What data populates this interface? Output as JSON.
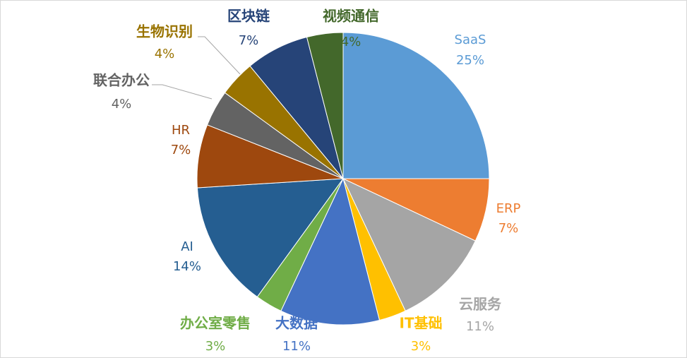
{
  "chart_data": {
    "type": "pie",
    "categories": [
      "SaaS",
      "ERP",
      "云服务",
      "IT基础",
      "大数据",
      "办公室零售",
      "AI",
      "HR",
      "联合办公",
      "生物识别",
      "区块链",
      "视频通信"
    ],
    "values": [
      25,
      7,
      11,
      3,
      11,
      3,
      14,
      7,
      4,
      4,
      7,
      4
    ],
    "value_labels": [
      "25%",
      "7%",
      "11%",
      "3%",
      "11%",
      "3%",
      "14%",
      "7%",
      "4%",
      "4%",
      "7%",
      "4%"
    ],
    "colors": [
      "#5b9bd5",
      "#ed7d31",
      "#a5a5a5",
      "#ffc000",
      "#4472c4",
      "#70ad47",
      "#255e91",
      "#9e480e",
      "#636363",
      "#997300",
      "#264478",
      "#43682b"
    ]
  }
}
